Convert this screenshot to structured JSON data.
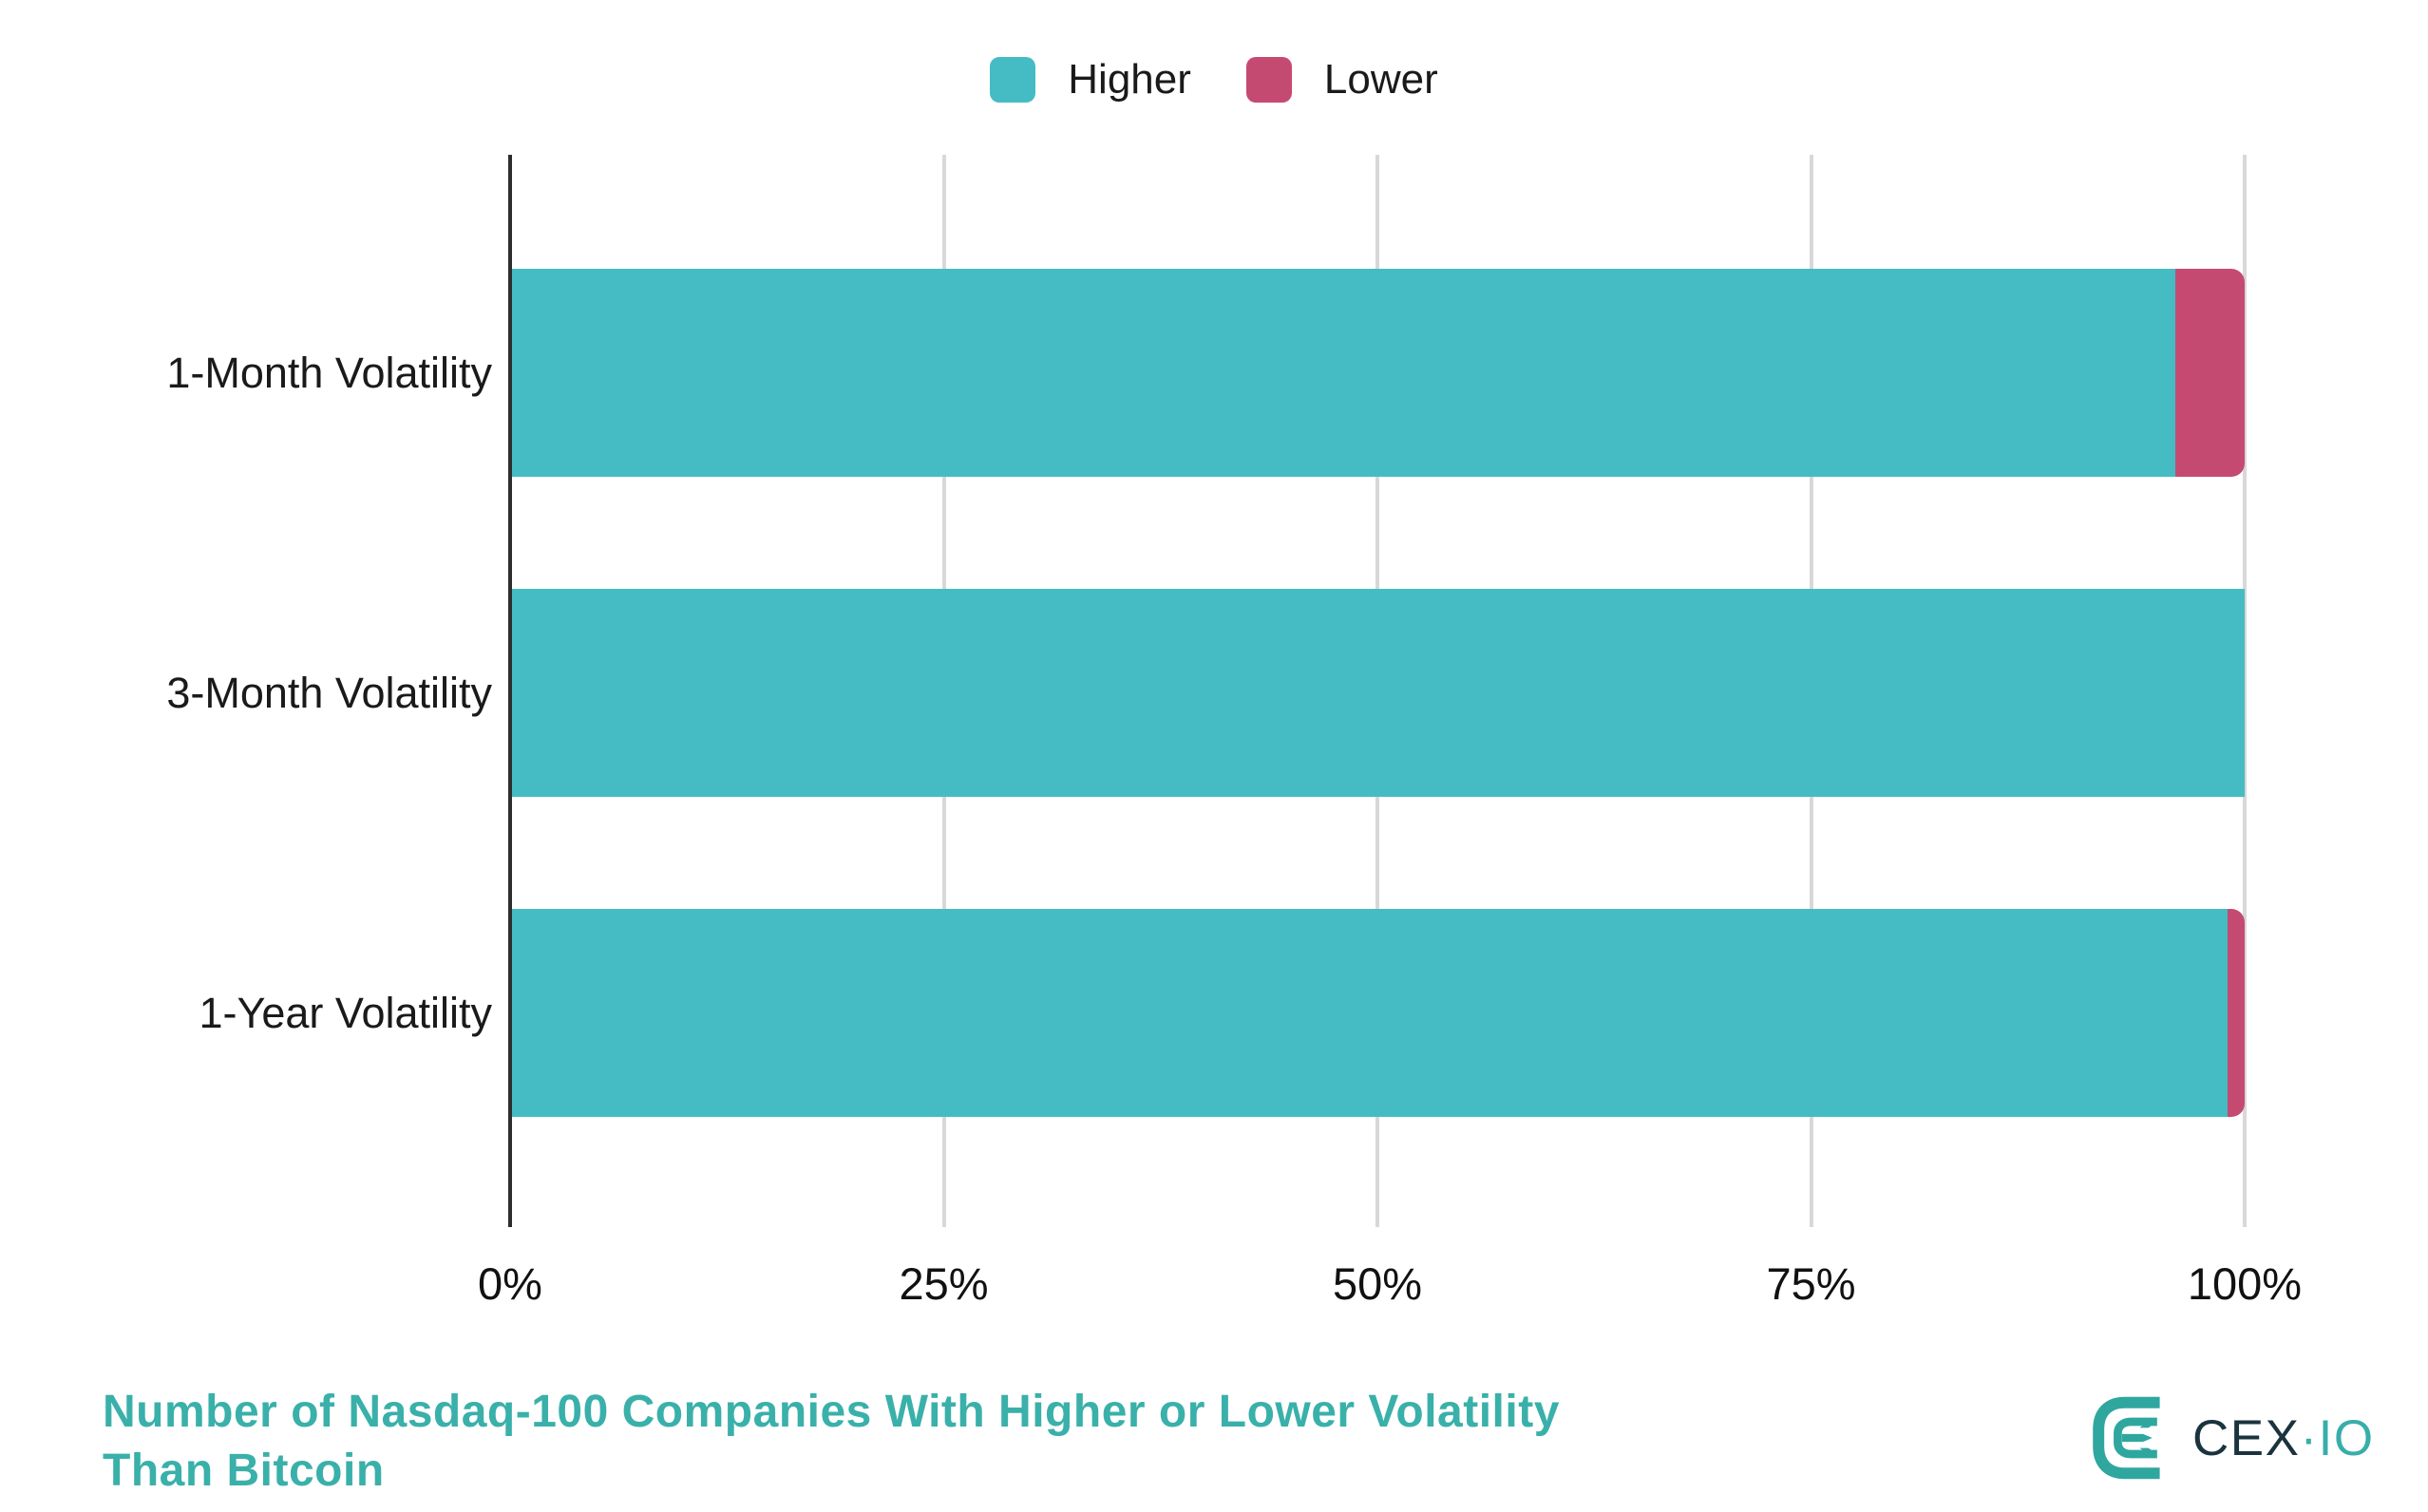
{
  "legend": {
    "items": [
      {
        "label": "Higher",
        "color": "#45bcc4"
      },
      {
        "label": "Lower",
        "color": "#c54a72"
      }
    ]
  },
  "chart_data": {
    "type": "bar",
    "orientation": "horizontal",
    "stacked": true,
    "title": "Number of Nasdaq-100 Companies With Higher or Lower Volatility Than Bitcoin",
    "categories": [
      "1-Month Volatility",
      "3-Month Volatility",
      "1-Year Volatility"
    ],
    "series": [
      {
        "name": "Higher",
        "color": "#45bcc4",
        "values": [
          96,
          100,
          99
        ]
      },
      {
        "name": "Lower",
        "color": "#c54a72",
        "values": [
          4,
          0,
          1
        ]
      }
    ],
    "x_axis": {
      "unit": "%",
      "range": [
        0,
        100
      ],
      "tick_values": [
        0,
        25,
        50,
        75,
        100
      ],
      "tick_labels": [
        "0%",
        "25%",
        "50%",
        "75%",
        "100%"
      ]
    },
    "legend_position": "top",
    "grid": true
  },
  "footer": {
    "title_lines": [
      "Number of Nasdaq-100 Companies With Higher or Lower Volatility",
      "Than Bitcoin"
    ],
    "title_color": "#3ab0aa"
  },
  "logo": {
    "cex": "CEX",
    "separator": "·",
    "io": "IO",
    "icon_color": "#2fa79f",
    "cex_color": "#1b333e",
    "io_color": "#38aeaa"
  }
}
